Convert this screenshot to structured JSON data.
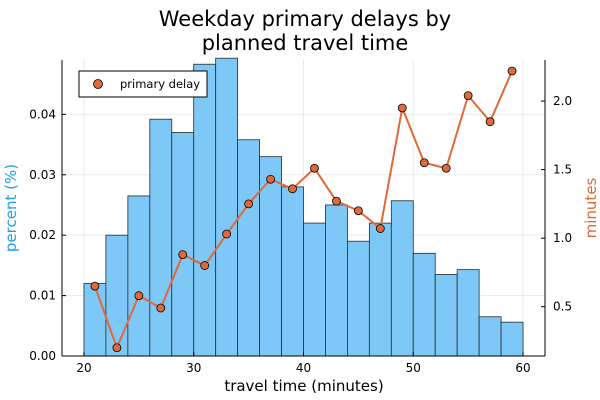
{
  "colors": {
    "bars": "#7ec8f7",
    "bar_stroke": "#2b2b2b",
    "line": "#e0693a",
    "left_axis_label": "#1f9fe0",
    "right_axis_label": "#e0693a"
  },
  "chart_data": {
    "type": "bar+line",
    "title_lines": [
      "Weekday primary delays by",
      "planned travel time"
    ],
    "xlabel": "travel time (minutes)",
    "ylabel_left": "percent (%)",
    "ylabel_right": "minutes",
    "xlim": [
      18,
      62
    ],
    "ylim_left": [
      0,
      0.049
    ],
    "ylim_right": [
      0.14,
      2.3
    ],
    "xticks": [
      20,
      30,
      40,
      50,
      60
    ],
    "yticks_left": [
      "0.00",
      "0.01",
      "0.02",
      "0.03",
      "0.04"
    ],
    "yticks_left_values": [
      0,
      0.01,
      0.02,
      0.03,
      0.04
    ],
    "yticks_right": [
      "0.5",
      "1.0",
      "1.5",
      "2.0"
    ],
    "yticks_right_values": [
      0.5,
      1.0,
      1.5,
      2.0
    ],
    "grid": true,
    "legend_position": "top-left",
    "histogram": {
      "bin_edges": [
        20,
        22,
        24,
        26,
        28,
        30,
        32,
        34,
        36,
        38,
        40,
        42,
        44,
        46,
        48,
        50,
        52,
        54,
        56,
        58,
        60
      ],
      "values": [
        0.012,
        0.02,
        0.0265,
        0.0392,
        0.037,
        0.0483,
        0.0493,
        0.0358,
        0.033,
        0.028,
        0.022,
        0.025,
        0.019,
        0.022,
        0.0257,
        0.017,
        0.0135,
        0.0143,
        0.0065,
        0.0056
      ]
    },
    "series": [
      {
        "name": "primary delay",
        "x": [
          21,
          23,
          25,
          27,
          29,
          31,
          33,
          35,
          37,
          39,
          41,
          43,
          45,
          47,
          49,
          51,
          53,
          55,
          57,
          59
        ],
        "y": [
          0.65,
          0.2,
          0.58,
          0.49,
          0.88,
          0.8,
          1.03,
          1.25,
          1.43,
          1.36,
          1.51,
          1.27,
          1.2,
          1.07,
          1.95,
          1.55,
          1.51,
          2.04,
          1.85,
          2.22
        ]
      }
    ]
  }
}
